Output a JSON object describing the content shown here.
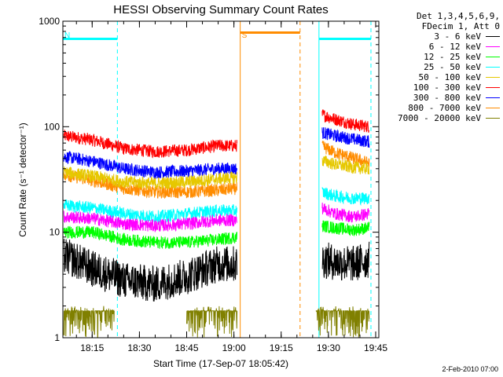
{
  "chart_data": {
    "type": "line",
    "title": "HESSI Observing Summary Count Rates",
    "xlabel": "Start Time (17-Sep-07 18:05:42)",
    "ylabel": "Count Rate (s⁻¹ detector⁻¹)",
    "y_scale": "log",
    "ylim": [
      1,
      1000
    ],
    "xlim": [
      "18:05:42",
      "19:46:00"
    ],
    "x_ticks": [
      "18:15",
      "18:30",
      "18:45",
      "19:00",
      "19:15",
      "19:30",
      "19:45"
    ],
    "y_ticks": [
      "1",
      "10",
      "100",
      "1000"
    ],
    "legend": {
      "placement": "right",
      "header": [
        "Det 1,3,4,5,6,9,",
        "FDecim 1, Att 0"
      ],
      "entries": [
        {
          "name": "3 - 6 keV",
          "color": "#000000"
        },
        {
          "name": "6 - 12 keV",
          "color": "#ff00ff"
        },
        {
          "name": "12 - 25 keV",
          "color": "#00ff00"
        },
        {
          "name": "25 - 50 keV",
          "color": "#00ffff"
        },
        {
          "name": "50 - 100 keV",
          "color": "#e6c800"
        },
        {
          "name": "100 - 300 keV",
          "color": "#ff0000"
        },
        {
          "name": "300 - 800 keV",
          "color": "#0000ff"
        },
        {
          "name": "800 - 7000 keV",
          "color": "#ff8c00"
        },
        {
          "name": "7000 - 20000 keV",
          "color": "#808000"
        }
      ]
    },
    "flags": [
      {
        "label": "N",
        "color": "#00ffff",
        "start": "18:05:42",
        "end": "18:23:00",
        "level": 680
      },
      {
        "label": "S",
        "color": "#ff8c00",
        "start": "19:02:00",
        "end": "19:21:00",
        "level": 780
      },
      {
        "label": "",
        "color": "#00ffff",
        "start": "19:27:00",
        "end": "19:43:30",
        "level": 680
      }
    ],
    "series": [
      {
        "name": "100 - 300 keV",
        "color": "#ff0000",
        "segments": [
          {
            "x": [
              "18:06",
              "18:15",
              "18:25",
              "18:35",
              "18:45",
              "18:55",
              "19:01"
            ],
            "y": [
              82,
              75,
              62,
              58,
              60,
              66,
              66
            ]
          },
          {
            "x": [
              "19:28",
              "19:32",
              "19:38",
              "19:43"
            ],
            "y": [
              130,
              118,
              105,
              100
            ]
          }
        ]
      },
      {
        "name": "300 - 800 keV",
        "color": "#0000ff",
        "segments": [
          {
            "x": [
              "18:06",
              "18:15",
              "18:25",
              "18:35",
              "18:45",
              "18:55",
              "19:01"
            ],
            "y": [
              52,
              47,
              40,
              37,
              38,
              40,
              40
            ]
          },
          {
            "x": [
              "19:28",
              "19:32",
              "19:38",
              "19:43"
            ],
            "y": [
              88,
              82,
              76,
              72
            ]
          }
        ]
      },
      {
        "name": "800 - 7000 keV",
        "color": "#ff8c00",
        "segments": [
          {
            "x": [
              "18:06",
              "18:15",
              "18:25",
              "18:35",
              "18:45",
              "18:55",
              "19:01"
            ],
            "y": [
              35,
              31,
              26,
              24,
              24,
              25,
              26
            ]
          },
          {
            "x": [
              "19:28",
              "19:32",
              "19:38",
              "19:43"
            ],
            "y": [
              65,
              57,
              50,
              45
            ]
          }
        ]
      },
      {
        "name": "50 - 100 keV",
        "color": "#e6c800",
        "segments": [
          {
            "x": [
              "18:06",
              "18:15",
              "18:25",
              "18:35",
              "18:45",
              "18:55",
              "19:01"
            ],
            "y": [
              37,
              34,
              30,
              29,
              30,
              32,
              33
            ]
          },
          {
            "x": [
              "19:28",
              "19:32",
              "19:38",
              "19:43"
            ],
            "y": [
              48,
              44,
              41,
              40
            ]
          }
        ]
      },
      {
        "name": "25 - 50 keV",
        "color": "#00ffff",
        "segments": [
          {
            "x": [
              "18:06",
              "18:15",
              "18:25",
              "18:35",
              "18:45",
              "18:55",
              "19:01"
            ],
            "y": [
              18,
              17,
              15,
              14,
              15,
              16,
              16
            ]
          },
          {
            "x": [
              "19:28",
              "19:32",
              "19:38",
              "19:43"
            ],
            "y": [
              24,
              22,
              21,
              21
            ]
          }
        ]
      },
      {
        "name": "6 - 12 keV",
        "color": "#ff00ff",
        "segments": [
          {
            "x": [
              "18:06",
              "18:15",
              "18:25",
              "18:35",
              "18:45",
              "18:55",
              "19:01"
            ],
            "y": [
              14,
              13.5,
              12,
              11.5,
              12,
              13,
              13
            ]
          },
          {
            "x": [
              "19:28",
              "19:32",
              "19:38",
              "19:43"
            ],
            "y": [
              17,
              15,
              14,
              15
            ]
          }
        ]
      },
      {
        "name": "12 - 25 keV",
        "color": "#00ff00",
        "segments": [
          {
            "x": [
              "18:06",
              "18:15",
              "18:25",
              "18:35",
              "18:45",
              "18:55",
              "19:01"
            ],
            "y": [
              10,
              10,
              8.5,
              8,
              8,
              8.5,
              9
            ]
          },
          {
            "x": [
              "19:28",
              "19:32",
              "19:38",
              "19:43"
            ],
            "y": [
              11.5,
              11,
              10.5,
              11
            ]
          }
        ]
      },
      {
        "name": "3 - 6 keV",
        "color": "#000000",
        "segments": [
          {
            "x": [
              "18:06",
              "18:15",
              "18:25",
              "18:35",
              "18:45",
              "18:55",
              "19:01"
            ],
            "y": [
              6,
              4.5,
              3.5,
              3.2,
              3.8,
              5,
              5
            ]
          },
          {
            "x": [
              "19:28",
              "19:32",
              "19:38",
              "19:43"
            ],
            "y": [
              5.5,
              5.2,
              5,
              5.5
            ]
          }
        ]
      },
      {
        "name": "7000 - 20000 keV",
        "color": "#808000",
        "segments": [
          {
            "x": [
              "18:06",
              "18:15",
              "18:22"
            ],
            "y": [
              1.8,
              1.8,
              1.8
            ]
          },
          {
            "x": [
              "18:45",
              "18:55",
              "19:01"
            ],
            "y": [
              1.8,
              1.8,
              1.8
            ]
          },
          {
            "x": [
              "19:26",
              "19:35",
              "19:43"
            ],
            "y": [
              1.8,
              1.8,
              1.8
            ]
          }
        ]
      }
    ]
  },
  "footer": {
    "timestamp": "2-Feb-2010 07:00"
  }
}
